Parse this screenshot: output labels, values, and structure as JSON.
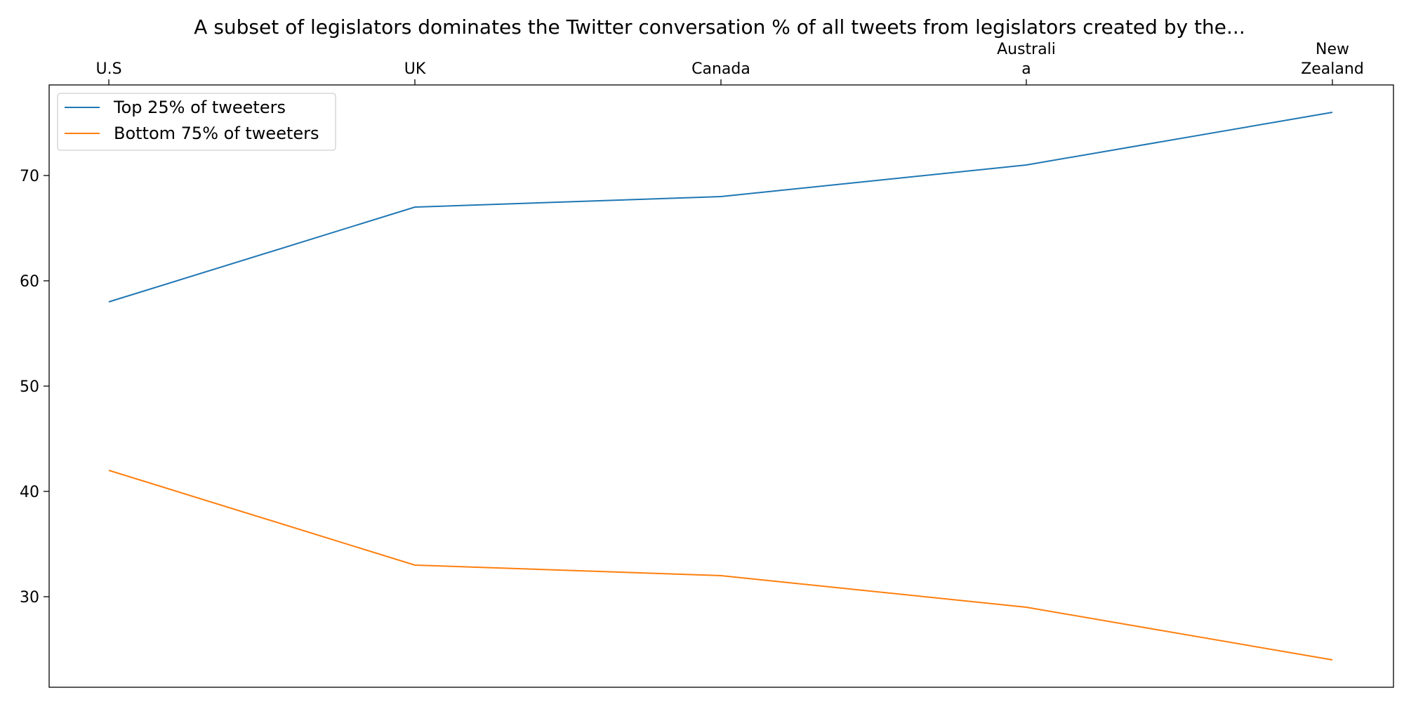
{
  "chart_data": {
    "type": "line",
    "title": "A subset of legislators dominates the Twitter conversation % of all tweets from legislators created by the...",
    "xlabel": "",
    "ylabel": "",
    "x_axis_position": "top",
    "categories": [
      [
        "U.S"
      ],
      [
        "UK"
      ],
      [
        "Canada"
      ],
      [
        "Australi",
        "a"
      ],
      [
        "New",
        "Zealand"
      ]
    ],
    "series": [
      {
        "name": "Top 25% of tweeters",
        "color": "#1f77b4",
        "values": [
          58,
          67,
          68,
          71,
          76
        ]
      },
      {
        "name": "Bottom 75% of tweeters",
        "color": "#ff7f0e",
        "values": [
          42,
          33,
          32,
          29,
          24
        ]
      }
    ],
    "ylim": [
      21.4,
      78.6
    ],
    "yticks": [
      30,
      40,
      50,
      60,
      70
    ],
    "grid": false,
    "legend_position": "upper-left"
  }
}
